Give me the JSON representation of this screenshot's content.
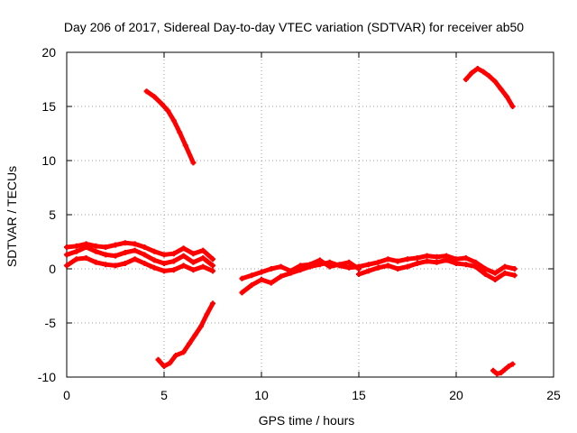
{
  "chart_data": {
    "type": "scatter",
    "title": "Day 206 of 2017, Sidereal Day-to-day VTEC variation (SDTVAR) for receiver ab50",
    "xlabel": "GPS time / hours",
    "ylabel": "SDTVAR / TECUs",
    "xlim": [
      0,
      25
    ],
    "ylim": [
      -10,
      20
    ],
    "xticks": [
      "0",
      "5",
      "10",
      "15",
      "20",
      "25"
    ],
    "yticks": [
      "-10",
      "-5",
      "0",
      "5",
      "10",
      "15",
      "20"
    ],
    "grid": true,
    "point_marker": "plus",
    "series_color": "#ff0000",
    "series": [
      {
        "name": "arc-1-main-band",
        "x": [
          0.0,
          0.5,
          1.0,
          1.5,
          2.0,
          2.5,
          3.0,
          3.5,
          4.0,
          4.5,
          5.0,
          5.5,
          6.0,
          6.5,
          7.0,
          7.5
        ],
        "y": [
          1.3,
          1.6,
          2.0,
          1.6,
          1.3,
          1.2,
          1.5,
          1.7,
          1.3,
          0.8,
          0.5,
          0.7,
          1.2,
          0.6,
          1.0,
          0.3
        ]
      },
      {
        "name": "arc-1-upper-edge",
        "x": [
          0.0,
          0.5,
          1.0,
          1.5,
          2.0,
          2.5,
          3.0,
          3.5,
          4.0,
          4.5,
          5.0,
          5.5,
          6.0,
          6.5,
          7.0,
          7.5
        ],
        "y": [
          2.0,
          2.1,
          2.3,
          2.1,
          2.0,
          2.2,
          2.4,
          2.3,
          2.0,
          1.6,
          1.3,
          1.4,
          1.9,
          1.4,
          1.7,
          0.9
        ]
      },
      {
        "name": "arc-1-lower-edge",
        "x": [
          0.0,
          0.5,
          1.0,
          1.5,
          2.0,
          2.5,
          3.0,
          3.5,
          4.0,
          4.5,
          5.0,
          5.5,
          6.0,
          6.5,
          7.0,
          7.5
        ],
        "y": [
          0.3,
          0.9,
          1.0,
          0.6,
          0.4,
          0.3,
          0.5,
          0.9,
          0.5,
          0.1,
          -0.2,
          -0.1,
          0.3,
          -0.1,
          0.2,
          -0.2
        ]
      },
      {
        "name": "arc-2",
        "x": [
          9.0,
          9.5,
          10.0,
          10.5,
          11.0,
          11.5,
          12.0,
          12.5,
          13.0,
          13.5,
          14.0,
          14.5,
          15.0
        ],
        "y": [
          -2.2,
          -1.5,
          -1.0,
          -1.3,
          -0.7,
          -0.4,
          -0.1,
          0.2,
          0.4,
          0.6,
          0.3,
          0.1,
          0.2
        ]
      },
      {
        "name": "arc-2-band",
        "x": [
          9.0,
          9.5,
          10.0,
          10.5,
          11.0,
          11.5,
          12.0,
          12.5,
          13.0,
          13.5,
          14.0,
          14.5,
          15.0
        ],
        "y": [
          -0.9,
          -0.6,
          -0.3,
          0.0,
          0.2,
          -0.2,
          0.3,
          0.4,
          0.8,
          0.2,
          0.4,
          0.6,
          0.0
        ]
      },
      {
        "name": "arc-3",
        "x": [
          15.0,
          15.5,
          16.0,
          16.5,
          17.0,
          17.5,
          18.0,
          18.5,
          19.0,
          19.5,
          20.0,
          20.5,
          21.0,
          21.5,
          22.0,
          22.5,
          23.0
        ],
        "y": [
          -0.5,
          -0.2,
          0.1,
          0.3,
          0.0,
          0.2,
          0.5,
          0.7,
          0.6,
          0.8,
          0.5,
          0.4,
          0.2,
          -0.5,
          -1.0,
          -0.4,
          -0.6
        ]
      },
      {
        "name": "arc-3-band",
        "x": [
          15.0,
          15.5,
          16.0,
          16.5,
          17.0,
          17.5,
          18.0,
          18.5,
          19.0,
          19.5,
          20.0,
          20.5,
          21.0,
          21.5,
          22.0,
          22.5,
          23.0
        ],
        "y": [
          0.2,
          0.4,
          0.6,
          0.9,
          0.7,
          0.9,
          1.0,
          1.2,
          1.1,
          1.2,
          0.9,
          1.0,
          0.6,
          0.0,
          -0.4,
          0.2,
          0.0
        ]
      },
      {
        "name": "arc-4",
        "x": [
          4.1,
          4.5,
          4.9,
          5.2,
          5.5,
          5.8,
          6.1,
          6.5
        ],
        "y": [
          16.4,
          15.9,
          15.2,
          14.6,
          13.7,
          12.6,
          11.4,
          9.8
        ]
      },
      {
        "name": "arc-5",
        "x": [
          20.5,
          20.8,
          21.1,
          21.4,
          21.7,
          22.0,
          22.3,
          22.6,
          22.9
        ],
        "y": [
          17.5,
          18.1,
          18.5,
          18.2,
          17.8,
          17.3,
          16.6,
          15.9,
          15.0
        ]
      },
      {
        "name": "arc-6",
        "x": [
          4.7,
          5.0,
          5.3,
          5.6,
          6.0,
          6.3,
          6.6,
          6.9,
          7.2,
          7.5
        ],
        "y": [
          -8.4,
          -9.0,
          -8.7,
          -8.0,
          -7.7,
          -6.9,
          -6.1,
          -5.3,
          -4.2,
          -3.2
        ]
      },
      {
        "name": "arc-7",
        "x": [
          21.9,
          22.1,
          22.3,
          22.5,
          22.7,
          22.9
        ],
        "y": [
          -9.4,
          -9.7,
          -9.6,
          -9.3,
          -9.0,
          -8.8
        ]
      }
    ]
  }
}
